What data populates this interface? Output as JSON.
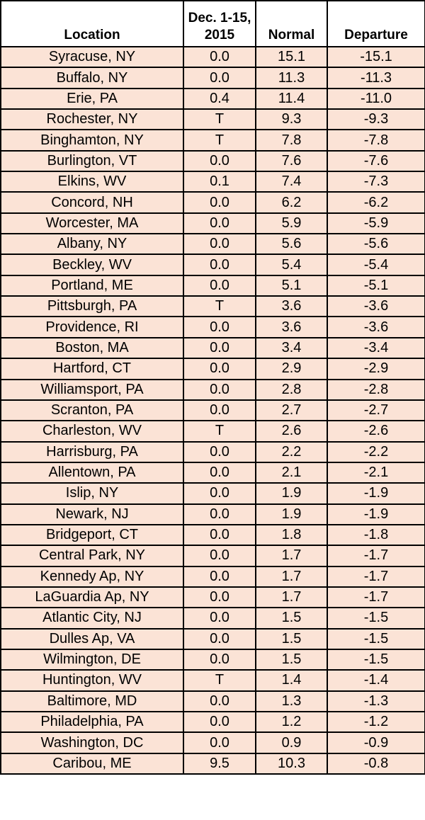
{
  "table": {
    "headers": {
      "location": "Location",
      "dec_line1": "Dec. 1-15,",
      "dec_line2": "2015",
      "normal": "Normal",
      "departure": "Departure"
    },
    "rows": [
      [
        "Syracuse, NY",
        "0.0",
        "15.1",
        "-15.1"
      ],
      [
        "Buffalo, NY",
        "0.0",
        "11.3",
        "-11.3"
      ],
      [
        "Erie, PA",
        "0.4",
        "11.4",
        "-11.0"
      ],
      [
        "Rochester, NY",
        "T",
        "9.3",
        "-9.3"
      ],
      [
        "Binghamton, NY",
        "T",
        "7.8",
        "-7.8"
      ],
      [
        "Burlington, VT",
        "0.0",
        "7.6",
        "-7.6"
      ],
      [
        "Elkins, WV",
        "0.1",
        "7.4",
        "-7.3"
      ],
      [
        "Concord, NH",
        "0.0",
        "6.2",
        "-6.2"
      ],
      [
        "Worcester, MA",
        "0.0",
        "5.9",
        "-5.9"
      ],
      [
        "Albany, NY",
        "0.0",
        "5.6",
        "-5.6"
      ],
      [
        "Beckley, WV",
        "0.0",
        "5.4",
        "-5.4"
      ],
      [
        "Portland, ME",
        "0.0",
        "5.1",
        "-5.1"
      ],
      [
        "Pittsburgh, PA",
        "T",
        "3.6",
        "-3.6"
      ],
      [
        "Providence, RI",
        "0.0",
        "3.6",
        "-3.6"
      ],
      [
        "Boston, MA",
        "0.0",
        "3.4",
        "-3.4"
      ],
      [
        "Hartford, CT",
        "0.0",
        "2.9",
        "-2.9"
      ],
      [
        "Williamsport, PA",
        "0.0",
        "2.8",
        "-2.8"
      ],
      [
        "Scranton, PA",
        "0.0",
        "2.7",
        "-2.7"
      ],
      [
        "Charleston, WV",
        "T",
        "2.6",
        "-2.6"
      ],
      [
        "Harrisburg, PA",
        "0.0",
        "2.2",
        "-2.2"
      ],
      [
        "Allentown, PA",
        "0.0",
        "2.1",
        "-2.1"
      ],
      [
        "Islip, NY",
        "0.0",
        "1.9",
        "-1.9"
      ],
      [
        "Newark, NJ",
        "0.0",
        "1.9",
        "-1.9"
      ],
      [
        "Bridgeport, CT",
        "0.0",
        "1.8",
        "-1.8"
      ],
      [
        "Central Park, NY",
        "0.0",
        "1.7",
        "-1.7"
      ],
      [
        "Kennedy Ap, NY",
        "0.0",
        "1.7",
        "-1.7"
      ],
      [
        "LaGuardia Ap, NY",
        "0.0",
        "1.7",
        "-1.7"
      ],
      [
        "Atlantic City, NJ",
        "0.0",
        "1.5",
        "-1.5"
      ],
      [
        "Dulles Ap, VA",
        "0.0",
        "1.5",
        "-1.5"
      ],
      [
        "Wilmington, DE",
        "0.0",
        "1.5",
        "-1.5"
      ],
      [
        "Huntington, WV",
        "T",
        "1.4",
        "-1.4"
      ],
      [
        "Baltimore, MD",
        "0.0",
        "1.3",
        "-1.3"
      ],
      [
        "Philadelphia, PA",
        "0.0",
        "1.2",
        "-1.2"
      ],
      [
        "Washington, DC",
        "0.0",
        "0.9",
        "-0.9"
      ],
      [
        "Caribou, ME",
        "9.5",
        "10.3",
        "-0.8"
      ]
    ]
  },
  "colors": {
    "row_fill": "#fbe3d6",
    "header_fill": "#ffffff",
    "border": "#000000"
  }
}
